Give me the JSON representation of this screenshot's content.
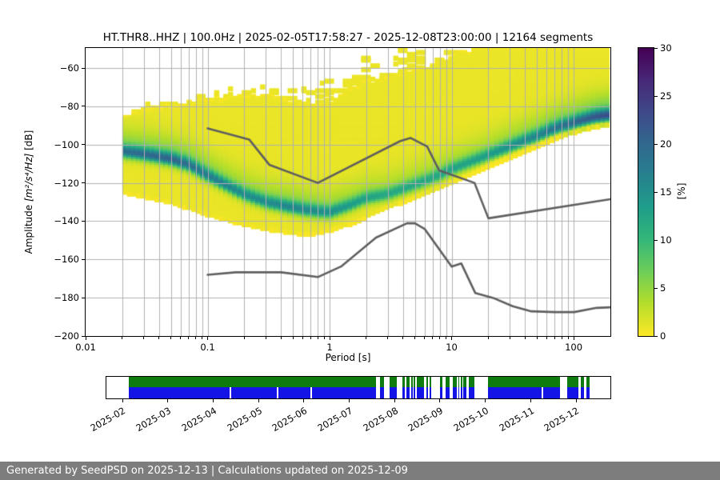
{
  "title": "HT.THR8..HHZ | 100.0Hz | 2025-02-05T17:58:27 - 2025-12-08T23:00:00 | 12164 segments",
  "footer": "Generated by SeedPSD on 2025-12-13 | Calculations updated on 2025-12-09",
  "axes": {
    "xlabel": "Period [s]",
    "ylabel_prefix": "Amplitude ",
    "ylabel_math": "[m²/s⁴/Hz]",
    "ylabel_suffix": " [dB]"
  },
  "chart_data": {
    "type": "heatmap",
    "title": "HT.THR8..HHZ | 100.0Hz | 2025-02-05T17:58:27 - 2025-12-08T23:00:00 | 12164 segments",
    "xlabel": "Period [s]",
    "ylabel": "Amplitude [m²/s⁴/Hz] [dB]",
    "xscale": "log",
    "xlim": [
      0.01,
      200
    ],
    "ylim": [
      -200,
      -49.5
    ],
    "grid": true,
    "xticks": {
      "values": [
        0.01,
        0.1,
        1,
        10,
        100
      ],
      "labels": [
        "0.01",
        "0.1",
        "1",
        "10",
        "100"
      ]
    },
    "yticks": {
      "values": [
        -60,
        -80,
        -100,
        -120,
        -140,
        -160,
        -180,
        -200
      ],
      "labels": [
        "−60",
        "−80",
        "−100",
        "−120",
        "−140",
        "−160",
        "−180",
        "−200"
      ]
    },
    "colorbar": {
      "label": "[%]",
      "range": [
        0,
        30
      ],
      "ticks": [
        0,
        5,
        10,
        15,
        20,
        25,
        30
      ],
      "tick_labels": [
        "0",
        "5",
        "10",
        "15",
        "20",
        "25",
        "30"
      ],
      "colormap": "viridis_r"
    },
    "ppsd_profile_columns": [
      "period_s",
      "mode_dB",
      "peak_percent",
      "upper_dB",
      "lower_dB",
      "streak_extent_dB"
    ],
    "ppsd_profile": [
      [
        0.02,
        -103.5,
        13.0,
        -85.0,
        -124.5,
        4
      ],
      [
        0.03,
        -105.0,
        13.5,
        -81.5,
        -127.0,
        4
      ],
      [
        0.05,
        -107.5,
        14.0,
        -79.0,
        -130.0,
        5
      ],
      [
        0.07,
        -110.5,
        13.0,
        -77.5,
        -133.0,
        5
      ],
      [
        0.1,
        -116.0,
        12.0,
        -76.0,
        -136.5,
        6
      ],
      [
        0.15,
        -122.0,
        11.0,
        -74.5,
        -139.5,
        7
      ],
      [
        0.2,
        -126.0,
        10.5,
        -74.0,
        -141.5,
        7
      ],
      [
        0.3,
        -130.0,
        10.5,
        -74.5,
        -144.0,
        6
      ],
      [
        0.5,
        -133.0,
        11.0,
        -77.0,
        -146.0,
        8
      ],
      [
        0.7,
        -134.5,
        10.5,
        -78.0,
        -146.5,
        10
      ],
      [
        1.0,
        -135.5,
        10.0,
        -76.0,
        -144.5,
        14
      ],
      [
        1.5,
        -131.5,
        9.0,
        -71.0,
        -141.0,
        16
      ],
      [
        2.0,
        -128.0,
        8.5,
        -67.0,
        -137.5,
        17
      ],
      [
        3.0,
        -126.0,
        8.0,
        -64.0,
        -132.0,
        18
      ],
      [
        5.0,
        -121.0,
        8.0,
        -60.0,
        -127.0,
        16
      ],
      [
        7.0,
        -117.5,
        8.0,
        -56.5,
        -123.5,
        10
      ],
      [
        10,
        -113.0,
        8.5,
        -53.0,
        -119.0,
        4
      ],
      [
        15,
        -108.5,
        8.5,
        -49.5,
        -114.0,
        0
      ],
      [
        20,
        -105.5,
        9.0,
        -49.5,
        -110.0,
        0
      ],
      [
        30,
        -101.0,
        10.0,
        -49.5,
        -105.5,
        0
      ],
      [
        50,
        -95.5,
        11.0,
        -49.5,
        -99.5,
        0
      ],
      [
        70,
        -91.5,
        12.5,
        -49.5,
        -95.5,
        0
      ],
      [
        100,
        -88.5,
        13.5,
        -49.5,
        -92.5,
        0
      ],
      [
        150,
        -85.5,
        15.0,
        -49.5,
        -89.5,
        0
      ],
      [
        200,
        -84.5,
        16.0,
        -49.5,
        -88.5,
        0
      ]
    ],
    "noise_models": {
      "high": [
        [
          0.1,
          -91.5
        ],
        [
          0.22,
          -97.4
        ],
        [
          0.32,
          -110.5
        ],
        [
          0.8,
          -120.0
        ],
        [
          3.8,
          -98.1
        ],
        [
          4.6,
          -96.5
        ],
        [
          6.3,
          -101.0
        ],
        [
          7.9,
          -113.5
        ],
        [
          15.4,
          -120.0
        ],
        [
          20,
          -138.5
        ],
        [
          200,
          -128.5
        ]
      ],
      "low": [
        [
          0.1,
          -168.0
        ],
        [
          0.17,
          -166.7
        ],
        [
          0.4,
          -166.7
        ],
        [
          0.8,
          -169.2
        ],
        [
          1.24,
          -163.7
        ],
        [
          2.4,
          -148.6
        ],
        [
          4.3,
          -141.1
        ],
        [
          5.0,
          -141.1
        ],
        [
          6.0,
          -144.0
        ],
        [
          10.0,
          -163.7
        ],
        [
          12.0,
          -162.1
        ],
        [
          15.6,
          -177.5
        ],
        [
          21.9,
          -180.1
        ],
        [
          31.6,
          -184.4
        ],
        [
          45.0,
          -187.1
        ],
        [
          70.0,
          -187.5
        ],
        [
          101.0,
          -187.5
        ],
        [
          154.0,
          -185.3
        ],
        [
          200.0,
          -185.0
        ]
      ]
    }
  },
  "timeline": {
    "months": [
      "2025-02",
      "2025-03",
      "2025-04",
      "2025-05",
      "2025-06",
      "2025-07",
      "2025-08",
      "2025-09",
      "2025-10",
      "2025-11",
      "2025-12"
    ],
    "month_fracs": [
      0.031,
      0.121,
      0.211,
      0.301,
      0.391,
      0.481,
      0.571,
      0.661,
      0.751,
      0.841,
      0.931
    ],
    "rows": [
      {
        "name": "row-1-green",
        "color": "#0e7b0e"
      },
      {
        "name": "row-2-blue",
        "color": "#1414e6"
      }
    ],
    "segments": [
      [
        0.044,
        0.535
      ],
      [
        0.543,
        0.551
      ],
      [
        0.562,
        0.576
      ],
      [
        0.587,
        0.592
      ],
      [
        0.595,
        0.602
      ],
      [
        0.605,
        0.608
      ],
      [
        0.61,
        0.613
      ],
      [
        0.616,
        0.63
      ],
      [
        0.635,
        0.638
      ],
      [
        0.641,
        0.644
      ],
      [
        0.662,
        0.667
      ],
      [
        0.673,
        0.681
      ],
      [
        0.687,
        0.695
      ],
      [
        0.698,
        0.7
      ],
      [
        0.703,
        0.706
      ],
      [
        0.708,
        0.714
      ],
      [
        0.719,
        0.73
      ],
      [
        0.757,
        0.9
      ],
      [
        0.914,
        0.937
      ],
      [
        0.941,
        0.948
      ],
      [
        0.952,
        0.959
      ]
    ],
    "blue_gap_fracs": [
      0.244,
      0.338,
      0.405,
      0.864
    ]
  },
  "colors": {
    "grid": "#b0b0b0",
    "noise_model_line": "#5f5f5f",
    "timeline_green": "#0e7b0e",
    "timeline_blue": "#1414e6",
    "footer_bg": "#7d7d7d",
    "footer_text": "#ffffff"
  }
}
